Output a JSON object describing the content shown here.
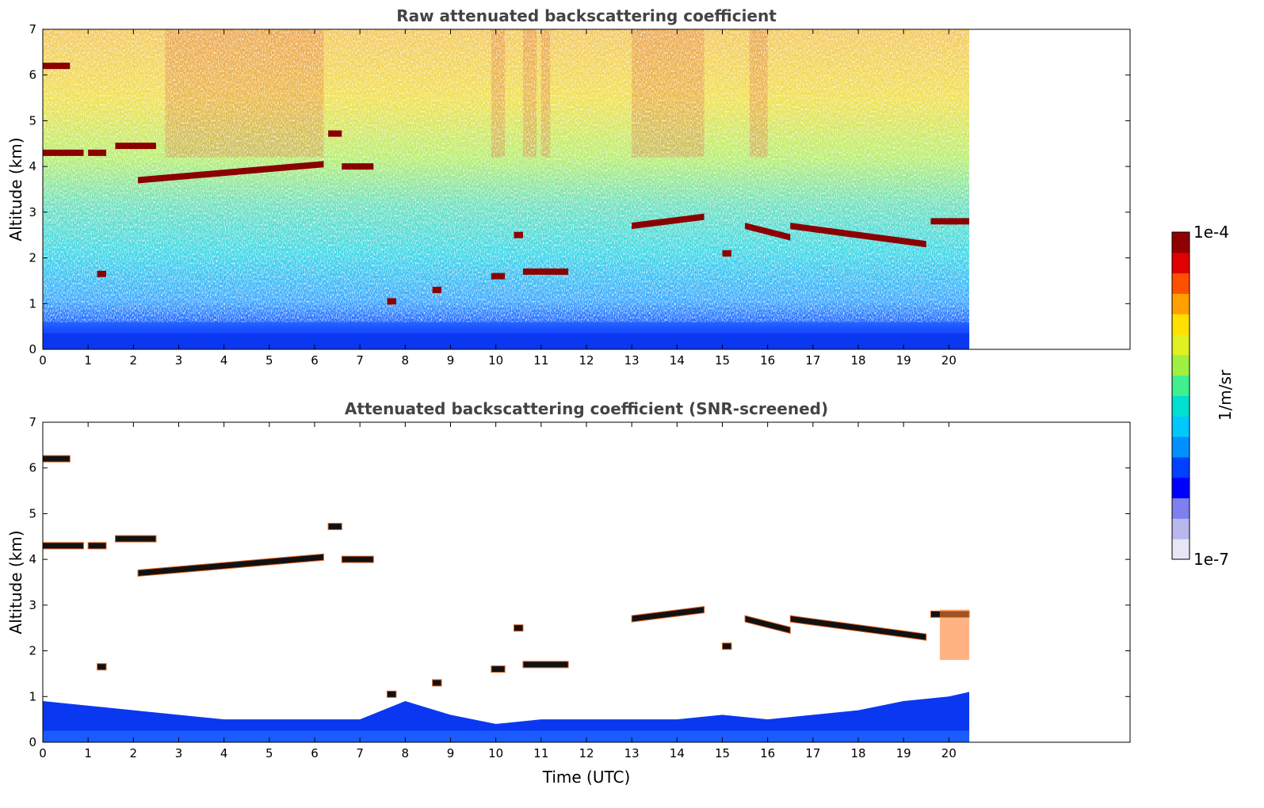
{
  "chart_data": [
    {
      "type": "heatmap",
      "title": "Raw attenuated backscattering coefficient",
      "xlabel": "",
      "ylabel": "Altitude (km)",
      "xlim": [
        0,
        24
      ],
      "ylim": [
        0,
        7
      ],
      "x_ticks": [
        "0",
        "1",
        "2",
        "3",
        "4",
        "5",
        "6",
        "7",
        "8",
        "9",
        "10",
        "11",
        "12",
        "13",
        "14",
        "15",
        "16",
        "17",
        "18",
        "19",
        "20"
      ],
      "y_ticks": [
        "0",
        "1",
        "2",
        "3",
        "4",
        "5",
        "6",
        "7"
      ],
      "data_time_range": [
        0,
        20.45
      ],
      "layers": [
        {
          "start": 0.0,
          "end": 0.6,
          "altitude": 6.2
        },
        {
          "start": 0.0,
          "end": 0.9,
          "altitude": 4.3
        },
        {
          "start": 1.0,
          "end": 1.4,
          "altitude": 4.3
        },
        {
          "start": 1.6,
          "end": 2.5,
          "altitude": 4.45
        },
        {
          "start": 1.2,
          "end": 1.4,
          "altitude": 1.65
        },
        {
          "start": 2.1,
          "end": 6.2,
          "altitude_start": 3.7,
          "altitude_end": 4.05
        },
        {
          "start": 6.6,
          "end": 7.3,
          "altitude": 4.0
        },
        {
          "start": 6.3,
          "end": 6.6,
          "altitude": 4.72
        },
        {
          "start": 7.6,
          "end": 7.8,
          "altitude": 1.05
        },
        {
          "start": 8.6,
          "end": 8.8,
          "altitude": 1.3
        },
        {
          "start": 9.9,
          "end": 10.2,
          "altitude": 1.6
        },
        {
          "start": 10.6,
          "end": 11.6,
          "altitude": 1.7
        },
        {
          "start": 10.4,
          "end": 10.6,
          "altitude": 2.5
        },
        {
          "start": 13.0,
          "end": 14.6,
          "altitude_start": 2.7,
          "altitude_end": 2.9
        },
        {
          "start": 15.0,
          "end": 15.2,
          "altitude": 2.1
        },
        {
          "start": 15.5,
          "end": 16.5,
          "altitude_start": 2.7,
          "altitude_end": 2.45
        },
        {
          "start": 16.5,
          "end": 19.5,
          "altitude_start": 2.7,
          "altitude_end": 2.3
        },
        {
          "start": 19.6,
          "end": 20.45,
          "altitude": 2.8
        }
      ],
      "colorbar": {
        "min": "1e-7",
        "max": "1e-4",
        "label": "1/m/sr"
      }
    },
    {
      "type": "heatmap",
      "title": "Attenuated backscattering coefficient (SNR-screened)",
      "xlabel": "Time (UTC)",
      "ylabel": "Altitude (km)",
      "xlim": [
        0,
        24
      ],
      "ylim": [
        0,
        7
      ],
      "x_ticks": [
        "0",
        "1",
        "2",
        "3",
        "4",
        "5",
        "6",
        "7",
        "8",
        "9",
        "10",
        "11",
        "12",
        "13",
        "14",
        "15",
        "16",
        "17",
        "18",
        "19",
        "20"
      ],
      "y_ticks": [
        "0",
        "1",
        "2",
        "3",
        "4",
        "5",
        "6",
        "7"
      ],
      "data_time_range": [
        0,
        20.45
      ],
      "boundary_layer_top_km": [
        [
          0,
          0.9
        ],
        [
          2,
          0.7
        ],
        [
          4,
          0.5
        ],
        [
          6,
          0.5
        ],
        [
          7,
          0.5
        ],
        [
          8,
          0.9
        ],
        [
          9,
          0.6
        ],
        [
          10,
          0.4
        ],
        [
          11,
          0.5
        ],
        [
          12,
          0.5
        ],
        [
          13,
          0.5
        ],
        [
          14,
          0.5
        ],
        [
          15,
          0.6
        ],
        [
          16,
          0.5
        ],
        [
          17,
          0.6
        ],
        [
          18,
          0.7
        ],
        [
          19,
          0.9
        ],
        [
          20,
          1.0
        ],
        [
          20.45,
          1.1
        ]
      ],
      "colorbar": {
        "min": "1e-7",
        "max": "1e-4",
        "label": "1/m/sr"
      }
    }
  ],
  "colorbar": {
    "max_label": "1e-4",
    "min_label": "1e-7",
    "unit_label": "1/m/sr",
    "colors": [
      "#e6e6f5",
      "#b8b8ec",
      "#7f7ff0",
      "#0000ff",
      "#0040ff",
      "#0090ff",
      "#00c8ff",
      "#00e0d0",
      "#40f090",
      "#a0f040",
      "#e0f020",
      "#ffe000",
      "#ffa000",
      "#ff5000",
      "#e00000",
      "#900000"
    ]
  }
}
